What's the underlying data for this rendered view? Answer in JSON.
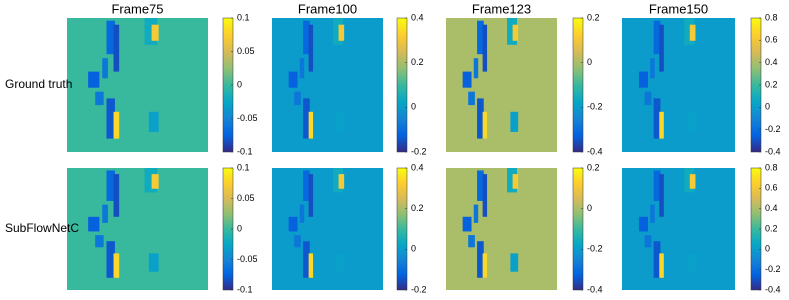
{
  "chart_data": [
    {
      "type": "heatmap",
      "title": "Frame75",
      "ylabel": "Ground truth",
      "clim": [
        -0.1,
        0.1
      ],
      "cticks": [
        -0.1,
        -0.05,
        0,
        0.05,
        0.1
      ]
    },
    {
      "type": "heatmap",
      "title": "Frame100",
      "clim": [
        -0.2,
        0.4
      ],
      "cticks": [
        -0.2,
        0,
        0.2,
        0.4
      ]
    },
    {
      "type": "heatmap",
      "title": "Frame123",
      "clim": [
        -0.4,
        0.2
      ],
      "cticks": [
        -0.4,
        -0.2,
        0,
        0.2
      ]
    },
    {
      "type": "heatmap",
      "title": "Frame150",
      "clim": [
        -0.4,
        0.8
      ],
      "cticks": [
        -0.4,
        -0.2,
        0,
        0.2,
        0.4,
        0.6,
        0.8
      ]
    },
    {
      "type": "heatmap",
      "ylabel": "SubFlowNetC",
      "clim": [
        -0.1,
        0.1
      ],
      "cticks": [
        -0.1,
        -0.05,
        0,
        0.05,
        0.1
      ]
    },
    {
      "type": "heatmap",
      "clim": [
        -0.2,
        0.4
      ],
      "cticks": [
        -0.2,
        0,
        0.2,
        0.4
      ]
    },
    {
      "type": "heatmap",
      "clim": [
        -0.4,
        0.2
      ],
      "cticks": [
        -0.4,
        -0.2,
        0,
        0.2
      ]
    },
    {
      "type": "heatmap",
      "clim": [
        -0.4,
        0.8
      ],
      "cticks": [
        -0.4,
        -0.2,
        0,
        0.2,
        0.4,
        0.6,
        0.8
      ]
    }
  ]
}
